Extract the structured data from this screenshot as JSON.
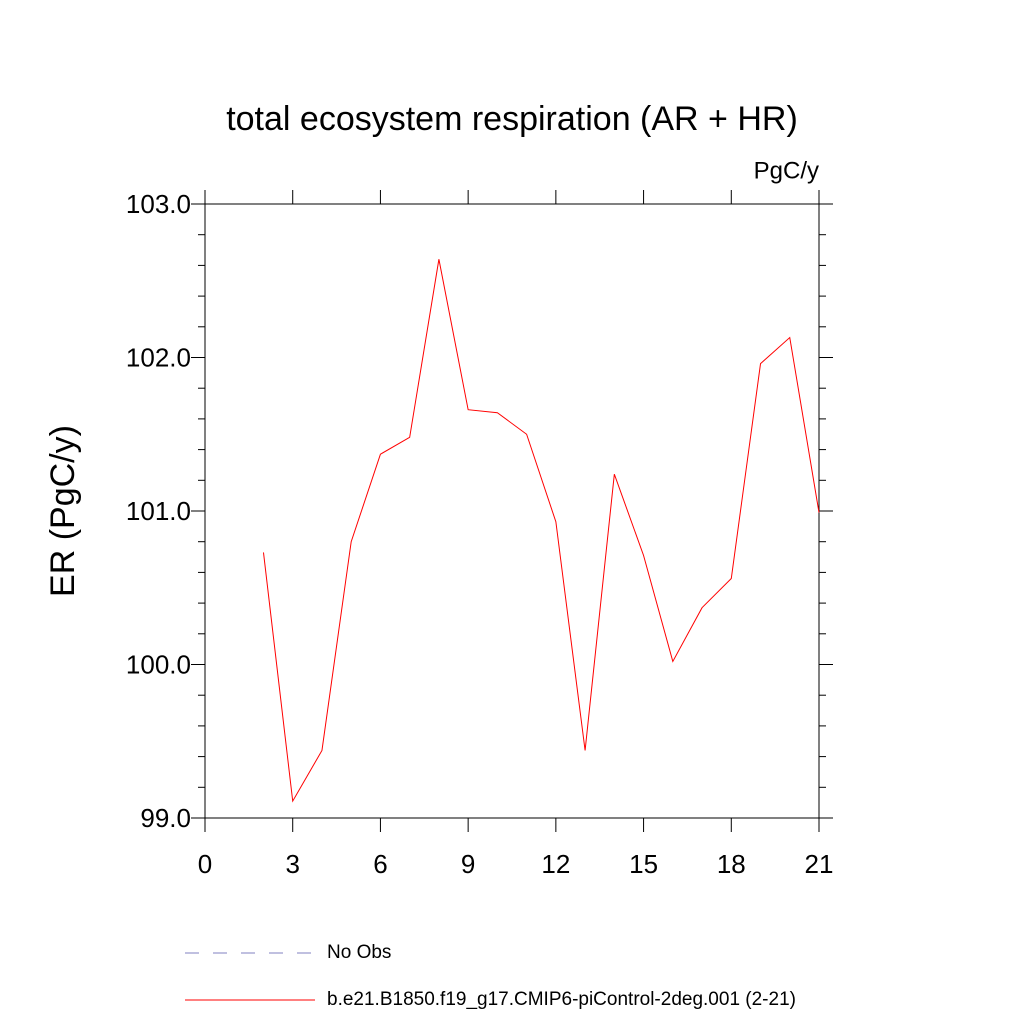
{
  "chart_data": {
    "type": "line",
    "title": "total ecosystem respiration (AR + HR)",
    "units": "PgC/y",
    "y_label": "ER  (PgC/y)",
    "x": [
      2,
      3,
      4,
      5,
      6,
      7,
      8,
      9,
      10,
      11,
      12,
      13,
      14,
      15,
      16,
      17,
      18,
      19,
      20,
      21
    ],
    "series": [
      {
        "name": "No Obs",
        "color": "#8080c0",
        "dashed": true,
        "values": [
          null,
          null,
          null,
          null,
          null,
          null,
          null,
          null,
          null,
          null,
          null,
          null,
          null,
          null,
          null,
          null,
          null,
          null,
          null,
          null
        ]
      },
      {
        "name": "b.e21.B1850.f19_g17.CMIP6-piControl-2deg.001 (2-21)",
        "color": "#ff0000",
        "dashed": false,
        "values": [
          100.73,
          99.11,
          99.44,
          100.8,
          101.37,
          101.48,
          102.64,
          101.66,
          101.64,
          101.5,
          100.93,
          99.44,
          101.24,
          100.71,
          100.02,
          100.37,
          100.56,
          101.96,
          102.13,
          100.99
        ]
      }
    ],
    "xlim": [
      0,
      21
    ],
    "xticks": [
      0,
      3,
      6,
      9,
      12,
      15,
      18,
      21
    ],
    "ylim": [
      99,
      103
    ],
    "yticks": [
      {
        "value": 99,
        "label": "99.0"
      },
      {
        "value": 100,
        "label": "100.0"
      },
      {
        "value": 101,
        "label": "101.0"
      },
      {
        "value": 102,
        "label": "102.0"
      },
      {
        "value": 103,
        "label": "103.0"
      }
    ],
    "yminorticks": [
      99.2,
      99.4,
      99.6,
      99.8,
      100.2,
      100.4,
      100.6,
      100.8,
      101.2,
      101.4,
      101.6,
      101.8,
      102.2,
      102.4,
      102.6,
      102.8
    ]
  }
}
